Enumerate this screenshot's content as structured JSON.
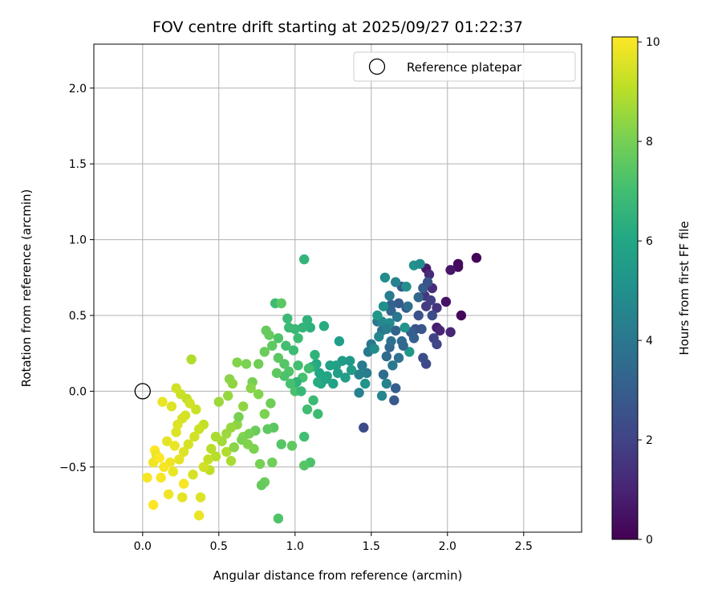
{
  "chart_data": {
    "type": "scatter",
    "title": "FOV centre drift starting at 2025/09/27 01:22:37",
    "xlabel": "Angular distance from reference (arcmin)",
    "ylabel": "Rotation from reference (arcmin)",
    "xlim": [
      -0.32,
      2.88
    ],
    "ylim": [
      -0.93,
      2.29
    ],
    "x_ticks": [
      0.0,
      0.5,
      1.0,
      1.5,
      2.0,
      2.5
    ],
    "x_tick_labels": [
      "0.0",
      "0.5",
      "1.0",
      "1.5",
      "2.0",
      "2.5"
    ],
    "y_ticks": [
      -0.5,
      0.0,
      0.5,
      1.0,
      1.5,
      2.0
    ],
    "y_tick_labels": [
      "−0.5",
      "0.0",
      "0.5",
      "1.0",
      "1.5",
      "2.0"
    ],
    "grid": true,
    "legend": {
      "position": "top-right",
      "entries": [
        "Reference platepar"
      ]
    },
    "reference_point": {
      "x": 0.0,
      "y": 0.0,
      "marker": "open-circle"
    },
    "colorbar": {
      "label": "Hours from first FF file",
      "colormap": "viridis",
      "range": [
        0,
        10.1
      ],
      "ticks": [
        0,
        2,
        4,
        6,
        8,
        10
      ],
      "tick_labels": [
        "0",
        "2",
        "4",
        "6",
        "8",
        "10"
      ]
    },
    "points": [
      [
        2.19,
        0.88,
        0.1
      ],
      [
        2.07,
        0.84,
        0.2
      ],
      [
        2.07,
        0.82,
        0.3
      ],
      [
        2.09,
        0.5,
        0.2
      ],
      [
        1.99,
        0.59,
        0.5
      ],
      [
        2.02,
        0.8,
        0.6
      ],
      [
        1.86,
        0.81,
        0.7
      ],
      [
        1.93,
        0.42,
        0.8
      ],
      [
        1.95,
        0.4,
        1.0
      ],
      [
        2.02,
        0.39,
        1.1
      ],
      [
        1.88,
        0.77,
        1.2
      ],
      [
        1.9,
        0.68,
        1.3
      ],
      [
        1.93,
        0.55,
        1.5
      ],
      [
        1.85,
        0.63,
        1.6
      ],
      [
        1.86,
        0.56,
        1.8
      ],
      [
        1.89,
        0.6,
        1.9
      ],
      [
        1.91,
        0.35,
        2.0
      ],
      [
        1.93,
        0.31,
        2.1
      ],
      [
        1.86,
        0.18,
        2.2
      ],
      [
        1.84,
        0.22,
        2.4
      ],
      [
        1.81,
        0.5,
        2.5
      ],
      [
        1.79,
        0.41,
        2.6
      ],
      [
        1.73,
        0.55,
        2.7
      ],
      [
        1.7,
        0.69,
        2.8
      ],
      [
        1.68,
        0.58,
        2.9
      ],
      [
        1.76,
        0.39,
        3.0
      ],
      [
        1.63,
        0.57,
        3.1
      ],
      [
        1.66,
        0.4,
        3.2
      ],
      [
        1.63,
        0.53,
        3.3
      ],
      [
        1.45,
        -0.24,
        2.3
      ],
      [
        1.66,
        0.02,
        3.0
      ],
      [
        1.65,
        -0.06,
        2.8
      ],
      [
        1.62,
        0.29,
        3.4
      ],
      [
        1.6,
        0.23,
        3.5
      ],
      [
        1.58,
        0.11,
        3.6
      ],
      [
        1.63,
        0.33,
        3.7
      ],
      [
        1.57,
        0.4,
        3.8
      ],
      [
        1.54,
        0.46,
        3.9
      ],
      [
        1.5,
        0.31,
        4.0
      ],
      [
        1.48,
        0.26,
        4.1
      ],
      [
        1.44,
        0.17,
        4.2
      ],
      [
        1.47,
        0.12,
        4.3
      ],
      [
        1.42,
        0.11,
        4.4
      ],
      [
        1.42,
        -0.01,
        4.5
      ],
      [
        1.57,
        -0.03,
        4.6
      ],
      [
        1.57,
        0.46,
        4.7
      ],
      [
        1.62,
        0.45,
        4.8
      ],
      [
        1.59,
        0.75,
        4.9
      ],
      [
        1.73,
        0.69,
        5.0
      ],
      [
        1.78,
        0.83,
        5.1
      ],
      [
        1.72,
        0.42,
        5.2
      ],
      [
        1.75,
        0.26,
        5.3
      ],
      [
        1.7,
        0.33,
        3.6
      ],
      [
        1.36,
        0.2,
        5.4
      ],
      [
        1.31,
        0.2,
        5.5
      ],
      [
        1.29,
        0.33,
        5.6
      ],
      [
        1.27,
        0.17,
        5.7
      ],
      [
        1.23,
        0.17,
        5.8
      ],
      [
        1.21,
        0.1,
        5.9
      ],
      [
        1.17,
        0.05,
        6.0
      ],
      [
        1.14,
        0.18,
        6.1
      ],
      [
        1.15,
        0.06,
        6.2
      ],
      [
        1.11,
        0.16,
        6.3
      ],
      [
        1.1,
        0.42,
        6.4
      ],
      [
        1.08,
        0.47,
        6.5
      ],
      [
        1.05,
        0.42,
        6.6
      ],
      [
        1.0,
        0.41,
        6.7
      ],
      [
        0.96,
        0.42,
        6.8
      ],
      [
        0.99,
        0.27,
        6.9
      ],
      [
        1.02,
        0.17,
        7.0
      ],
      [
        1.06,
        0.87,
        6.6
      ],
      [
        1.19,
        0.43,
        6.2
      ],
      [
        1.13,
        0.24,
        6.5
      ],
      [
        1.09,
        0.15,
        7.0
      ],
      [
        1.05,
        0.09,
        7.1
      ],
      [
        1.0,
        0.0,
        7.2
      ],
      [
        0.96,
        0.13,
        7.3
      ],
      [
        0.93,
        0.18,
        7.4
      ],
      [
        0.89,
        0.22,
        7.5
      ],
      [
        0.85,
        0.3,
        7.6
      ],
      [
        0.83,
        0.37,
        7.7
      ],
      [
        0.87,
        0.58,
        6.9
      ],
      [
        0.91,
        0.58,
        7.5
      ],
      [
        0.81,
        0.4,
        7.7
      ],
      [
        0.8,
        0.26,
        7.8
      ],
      [
        0.76,
        0.18,
        7.9
      ],
      [
        0.72,
        0.06,
        8.0
      ],
      [
        0.68,
        0.18,
        8.1
      ],
      [
        0.62,
        0.19,
        8.2
      ],
      [
        0.57,
        0.08,
        8.3
      ],
      [
        0.59,
        0.05,
        8.4
      ],
      [
        0.56,
        -0.03,
        8.5
      ],
      [
        0.5,
        -0.07,
        8.6
      ],
      [
        1.1,
        -0.47,
        7.2
      ],
      [
        1.06,
        -0.49,
        7.4
      ],
      [
        1.06,
        -0.3,
        7.0
      ],
      [
        0.98,
        -0.36,
        7.6
      ],
      [
        0.89,
        -0.84,
        7.3
      ],
      [
        0.85,
        -0.47,
        7.9
      ],
      [
        0.8,
        -0.6,
        7.8
      ],
      [
        0.78,
        -0.62,
        7.7
      ],
      [
        0.77,
        -0.48,
        8.0
      ],
      [
        0.73,
        -0.38,
        8.1
      ],
      [
        0.69,
        -0.35,
        8.2
      ],
      [
        0.66,
        -0.3,
        8.3
      ],
      [
        0.62,
        -0.22,
        8.4
      ],
      [
        0.58,
        -0.24,
        8.5
      ],
      [
        0.55,
        -0.28,
        8.6
      ],
      [
        0.52,
        -0.33,
        8.7
      ],
      [
        0.58,
        -0.46,
        8.8
      ],
      [
        0.55,
        -0.4,
        8.9
      ],
      [
        0.48,
        -0.43,
        9.0
      ],
      [
        0.44,
        -0.52,
        9.1
      ],
      [
        0.4,
        -0.22,
        9.2
      ],
      [
        0.37,
        -0.25,
        9.3
      ],
      [
        0.34,
        -0.3,
        9.4
      ],
      [
        0.3,
        -0.35,
        9.5
      ],
      [
        0.27,
        -0.4,
        9.6
      ],
      [
        0.24,
        -0.45,
        9.7
      ],
      [
        0.2,
        -0.53,
        9.8
      ],
      [
        0.17,
        -0.68,
        9.9
      ],
      [
        0.12,
        -0.57,
        10.0
      ],
      [
        0.07,
        -0.75,
        10.1
      ],
      [
        0.03,
        -0.57,
        10.0
      ],
      [
        0.08,
        -0.39,
        10.1
      ],
      [
        0.07,
        -0.47,
        9.9
      ],
      [
        0.09,
        -0.42,
        9.8
      ],
      [
        0.16,
        -0.33,
        9.7
      ],
      [
        0.22,
        -0.27,
        9.6
      ],
      [
        0.26,
        -0.18,
        9.5
      ],
      [
        0.25,
        -0.02,
        9.3
      ],
      [
        0.29,
        -0.05,
        9.2
      ],
      [
        0.32,
        0.21,
        8.9
      ],
      [
        0.22,
        0.02,
        9.4
      ],
      [
        0.19,
        -0.1,
        9.6
      ],
      [
        0.13,
        -0.07,
        9.8
      ],
      [
        0.27,
        -0.61,
        10.0
      ],
      [
        0.37,
        -0.82,
        9.8
      ],
      [
        0.38,
        -0.7,
        9.6
      ],
      [
        0.4,
        -0.5,
        9.4
      ],
      [
        0.43,
        -0.45,
        9.2
      ],
      [
        0.45,
        -0.38,
        9.0
      ],
      [
        0.48,
        -0.3,
        8.8
      ],
      [
        0.91,
        -0.35,
        7.4
      ],
      [
        0.86,
        -0.24,
        7.5
      ],
      [
        0.82,
        -0.25,
        7.6
      ],
      [
        0.74,
        -0.26,
        7.8
      ],
      [
        0.7,
        -0.28,
        8.0
      ],
      [
        0.65,
        -0.32,
        8.1
      ],
      [
        0.6,
        -0.37,
        8.3
      ],
      [
        0.63,
        -0.17,
        8.0
      ],
      [
        1.15,
        -0.15,
        6.9
      ],
      [
        1.12,
        -0.06,
        6.8
      ],
      [
        1.08,
        -0.12,
        7.0
      ],
      [
        1.04,
        0.0,
        6.7
      ],
      [
        1.01,
        0.06,
        6.5
      ],
      [
        0.97,
        0.05,
        7.1
      ],
      [
        0.93,
        0.1,
        7.2
      ],
      [
        1.16,
        0.12,
        6.0
      ],
      [
        1.2,
        0.08,
        5.9
      ],
      [
        1.25,
        0.05,
        5.8
      ],
      [
        1.28,
        0.12,
        5.7
      ],
      [
        1.33,
        0.09,
        5.6
      ],
      [
        1.37,
        0.14,
        5.5
      ],
      [
        1.46,
        0.05,
        5.2
      ],
      [
        1.52,
        0.28,
        4.9
      ],
      [
        1.55,
        0.36,
        4.6
      ],
      [
        1.6,
        0.41,
        4.3
      ],
      [
        1.67,
        0.49,
        4.0
      ],
      [
        1.74,
        0.56,
        3.7
      ],
      [
        1.81,
        0.62,
        3.3
      ],
      [
        1.84,
        0.68,
        2.9
      ],
      [
        1.87,
        0.72,
        2.6
      ],
      [
        1.9,
        0.5,
        2.4
      ],
      [
        1.83,
        0.41,
        2.7
      ],
      [
        1.78,
        0.35,
        3.1
      ],
      [
        1.71,
        0.3,
        3.4
      ],
      [
        1.68,
        0.22,
        3.8
      ],
      [
        1.64,
        0.17,
        4.1
      ],
      [
        1.6,
        0.05,
        4.4
      ],
      [
        1.82,
        0.84,
        4.8
      ],
      [
        1.66,
        0.72,
        4.5
      ],
      [
        1.62,
        0.63,
        4.2
      ],
      [
        1.58,
        0.56,
        5.0
      ],
      [
        1.54,
        0.5,
        5.3
      ],
      [
        0.94,
        0.3,
        7.0
      ],
      [
        0.89,
        0.35,
        7.3
      ],
      [
        0.95,
        0.48,
        6.8
      ],
      [
        1.02,
        0.35,
        6.9
      ],
      [
        0.88,
        0.12,
        7.6
      ],
      [
        0.84,
        -0.08,
        7.9
      ],
      [
        0.8,
        -0.15,
        8.1
      ],
      [
        0.76,
        -0.02,
        8.2
      ],
      [
        0.71,
        0.02,
        8.3
      ],
      [
        0.66,
        -0.1,
        8.4
      ],
      [
        0.35,
        -0.12,
        9.3
      ],
      [
        0.31,
        -0.08,
        9.4
      ],
      [
        0.28,
        -0.16,
        9.5
      ],
      [
        0.23,
        -0.22,
        9.6
      ],
      [
        0.21,
        -0.36,
        9.8
      ],
      [
        0.18,
        -0.47,
        9.9
      ],
      [
        0.14,
        -0.5,
        10.0
      ],
      [
        0.11,
        -0.44,
        10.1
      ],
      [
        0.26,
        -0.7,
        9.7
      ],
      [
        0.33,
        -0.55,
        9.5
      ]
    ]
  }
}
